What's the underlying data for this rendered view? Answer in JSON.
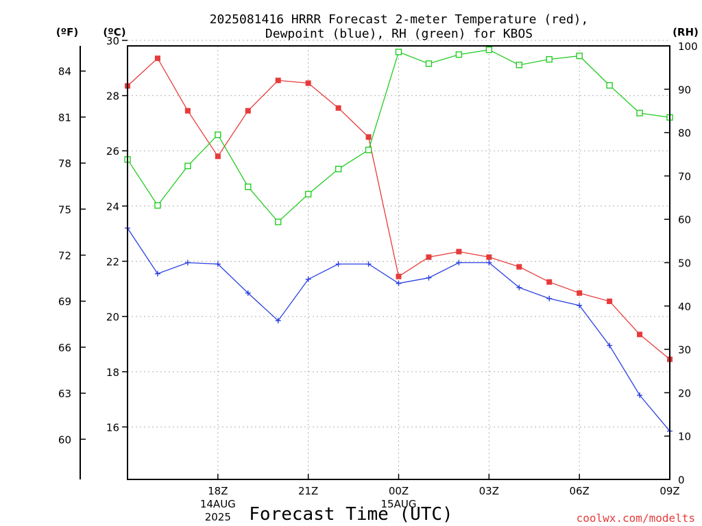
{
  "title": {
    "line1": "2025081416 HRRR Forecast 2-meter Temperature (red),",
    "line2": "Dewpoint (blue), RH (green) for KBOS"
  },
  "units": {
    "fahrenheit": "(ºF)",
    "celsius": "(ºC)",
    "rh": "(RH)"
  },
  "xlabel": "Forecast Time (UTC)",
  "credit": "coolwx.com/modelts",
  "colors": {
    "temperature": "#e63b3b",
    "dewpoint": "#2b3fe0",
    "rh": "#22cc22",
    "grid": "#b0b0b0"
  },
  "chart_data": {
    "type": "line",
    "grid": true,
    "x": [
      15,
      16,
      17,
      18,
      19,
      20,
      21,
      22,
      23,
      24,
      25,
      26,
      27,
      28,
      29,
      30,
      31,
      32,
      33
    ],
    "x_ticks": [
      {
        "x": 18,
        "label": "18Z",
        "sub1": "14AUG",
        "sub2": "2025"
      },
      {
        "x": 21,
        "label": "21Z",
        "sub1": "",
        "sub2": ""
      },
      {
        "x": 24,
        "label": "00Z",
        "sub1": "15AUG",
        "sub2": ""
      },
      {
        "x": 27,
        "label": "03Z",
        "sub1": "",
        "sub2": ""
      },
      {
        "x": 30,
        "label": "06Z",
        "sub1": "",
        "sub2": ""
      },
      {
        "x": 33,
        "label": "09Z",
        "sub1": "",
        "sub2": ""
      }
    ],
    "celsius_axis": {
      "range": [
        14.1,
        29.8
      ],
      "ticks": [
        16,
        18,
        20,
        22,
        24,
        26,
        28,
        30
      ]
    },
    "fahrenheit_axis": {
      "ticks": [
        60,
        63,
        66,
        69,
        72,
        75,
        78,
        81,
        84
      ]
    },
    "rh_axis": {
      "range": [
        0,
        100
      ],
      "ticks": [
        0,
        10,
        20,
        30,
        40,
        50,
        60,
        70,
        80,
        90,
        100
      ]
    },
    "series": [
      {
        "name": "Temperature",
        "axis": "celsius",
        "marker": "filled-square",
        "values": [
          28.35,
          29.35,
          27.45,
          25.8,
          27.45,
          28.55,
          28.45,
          27.55,
          26.5,
          21.45,
          22.15,
          22.35,
          22.15,
          21.8,
          21.25,
          20.85,
          20.55,
          19.35,
          18.45
        ]
      },
      {
        "name": "Dewpoint",
        "axis": "celsius",
        "marker": "plus",
        "values": [
          23.2,
          21.55,
          21.95,
          21.9,
          20.85,
          19.85,
          21.35,
          21.9,
          21.9,
          21.2,
          21.4,
          21.95,
          21.95,
          21.05,
          20.65,
          20.4,
          18.95,
          17.15,
          15.85
        ]
      },
      {
        "name": "RH",
        "axis": "rh",
        "marker": "open-square",
        "values": [
          73.8,
          63.2,
          72.3,
          79.5,
          67.5,
          59.4,
          65.8,
          71.6,
          76.0,
          98.6,
          95.9,
          98.0,
          99.1,
          95.6,
          96.9,
          97.7,
          90.9,
          84.5,
          83.5
        ]
      }
    ]
  }
}
